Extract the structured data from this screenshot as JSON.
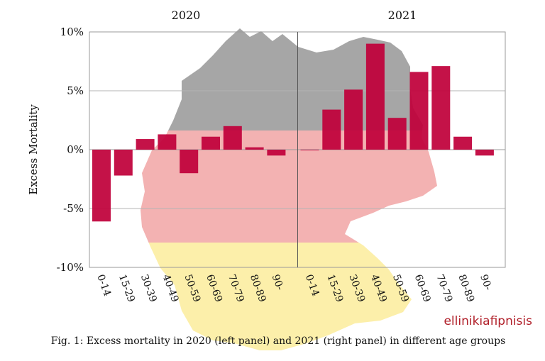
{
  "chart_data": {
    "type": "bar",
    "ylabel": "Excess Mortality",
    "ylim": [
      -10,
      10
    ],
    "yticks": [
      10,
      5,
      0,
      -5,
      -10
    ],
    "ytick_labels": [
      "10%",
      "5%",
      "0%",
      "-5%",
      "-10%"
    ],
    "grid": true,
    "panels": [
      {
        "title": "2020",
        "categories": [
          "0-14",
          "15-29",
          "30-39",
          "40-49",
          "50-59",
          "60-69",
          "70-79",
          "80-89",
          "90-"
        ],
        "values": [
          -6.1,
          -2.2,
          0.9,
          1.3,
          -2.0,
          1.1,
          2.0,
          0.2,
          -0.5
        ]
      },
      {
        "title": "2021",
        "categories": [
          "0-14",
          "15-29",
          "30-39",
          "40-49",
          "50-59",
          "60-69",
          "70-79",
          "80-89",
          "90-"
        ],
        "values": [
          -0.05,
          3.4,
          5.1,
          9.0,
          2.7,
          6.6,
          7.1,
          1.1,
          -0.5
        ]
      }
    ],
    "caption": "Fig. 1: Excess mortality in 2020 (left panel) and 2021 (right panel) in different age groups"
  },
  "watermark": "ellinikiafipnisis",
  "colors": {
    "bar": "#c0003a",
    "flag_black": "#a6a6a6",
    "flag_red": "#f3b2b2",
    "flag_gold": "#fcefaa",
    "grid": "#b4b4b4",
    "watermark": "#b01e28"
  }
}
